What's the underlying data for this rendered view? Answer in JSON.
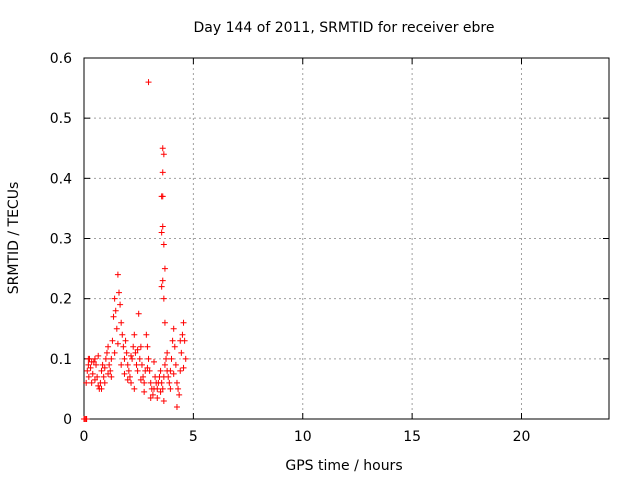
{
  "chart_data": {
    "type": "scatter",
    "title": "Day 144 of 2011, SRMTID for receiver ebre",
    "xlabel": "GPS time / hours",
    "ylabel": "SRMTID / TECUs",
    "xlim": [
      0,
      24
    ],
    "ylim": [
      0,
      0.6
    ],
    "xticks": [
      0,
      5,
      10,
      15,
      20
    ],
    "yticks": [
      0,
      0.1,
      0.2,
      0.3,
      0.4,
      0.5,
      0.6
    ],
    "xtick_labels": [
      "0",
      "5",
      "10",
      "15",
      "20"
    ],
    "ytick_labels": [
      "0",
      "0.1",
      "0.2",
      "0.3",
      "0.4",
      "0.5",
      "0.6"
    ],
    "grid": true,
    "marker": "+",
    "color": "#ff0000",
    "series": [
      {
        "name": "SRMTID",
        "points": [
          [
            0.0,
            0.0
          ],
          [
            0.05,
            0.0
          ],
          [
            0.1,
            0.0
          ],
          [
            0.12,
            0.0
          ],
          [
            0.1,
            0.06
          ],
          [
            0.15,
            0.08
          ],
          [
            0.2,
            0.09
          ],
          [
            0.22,
            0.07
          ],
          [
            0.25,
            0.1
          ],
          [
            0.3,
            0.085
          ],
          [
            0.35,
            0.06
          ],
          [
            0.4,
            0.075
          ],
          [
            0.45,
            0.095
          ],
          [
            0.5,
            0.1
          ],
          [
            0.55,
            0.09
          ],
          [
            0.6,
            0.07
          ],
          [
            0.65,
            0.055
          ],
          [
            0.7,
            0.05
          ],
          [
            0.75,
            0.06
          ],
          [
            0.8,
            0.08
          ],
          [
            0.85,
            0.09
          ],
          [
            0.9,
            0.07
          ],
          [
            0.95,
            0.06
          ],
          [
            1.0,
            0.1
          ],
          [
            1.05,
            0.11
          ],
          [
            1.1,
            0.12
          ],
          [
            1.15,
            0.09
          ],
          [
            1.2,
            0.08
          ],
          [
            1.25,
            0.1
          ],
          [
            1.3,
            0.13
          ],
          [
            1.35,
            0.17
          ],
          [
            1.4,
            0.2
          ],
          [
            1.45,
            0.18
          ],
          [
            1.5,
            0.15
          ],
          [
            1.55,
            0.24
          ],
          [
            1.6,
            0.21
          ],
          [
            1.65,
            0.19
          ],
          [
            1.7,
            0.16
          ],
          [
            1.75,
            0.14
          ],
          [
            1.8,
            0.12
          ],
          [
            1.85,
            0.1
          ],
          [
            1.9,
            0.13
          ],
          [
            1.95,
            0.11
          ],
          [
            2.0,
            0.09
          ],
          [
            2.05,
            0.08
          ],
          [
            2.1,
            0.07
          ],
          [
            2.15,
            0.06
          ],
          [
            2.2,
            0.1
          ],
          [
            2.25,
            0.12
          ],
          [
            2.3,
            0.14
          ],
          [
            2.35,
            0.11
          ],
          [
            2.4,
            0.09
          ],
          [
            2.45,
            0.08
          ],
          [
            2.5,
            0.175
          ],
          [
            2.55,
            0.1
          ],
          [
            2.6,
            0.12
          ],
          [
            2.65,
            0.09
          ],
          [
            2.7,
            0.07
          ],
          [
            2.75,
            0.06
          ],
          [
            2.8,
            0.08
          ],
          [
            2.85,
            0.14
          ],
          [
            2.9,
            0.12
          ],
          [
            2.95,
            0.1
          ],
          [
            3.0,
            0.08
          ],
          [
            3.05,
            0.06
          ],
          [
            3.1,
            0.05
          ],
          [
            3.15,
            0.04
          ],
          [
            3.2,
            0.05
          ],
          [
            3.25,
            0.07
          ],
          [
            3.3,
            0.06
          ],
          [
            3.35,
            0.05
          ],
          [
            3.4,
            0.06
          ],
          [
            3.45,
            0.07
          ],
          [
            3.5,
            0.08
          ],
          [
            3.55,
            0.06
          ],
          [
            3.6,
            0.05
          ],
          [
            3.65,
            0.07
          ],
          [
            3.7,
            0.09
          ],
          [
            3.75,
            0.1
          ],
          [
            3.8,
            0.08
          ],
          [
            3.85,
            0.07
          ],
          [
            3.9,
            0.06
          ],
          [
            3.95,
            0.08
          ],
          [
            4.0,
            0.1
          ],
          [
            4.05,
            0.13
          ],
          [
            4.1,
            0.15
          ],
          [
            4.15,
            0.12
          ],
          [
            4.2,
            0.09
          ],
          [
            4.25,
            0.06
          ],
          [
            4.3,
            0.05
          ],
          [
            4.35,
            0.04
          ],
          [
            4.4,
            0.08
          ],
          [
            4.45,
            0.11
          ],
          [
            4.5,
            0.14
          ],
          [
            4.55,
            0.16
          ],
          [
            4.6,
            0.13
          ],
          [
            4.65,
            0.1
          ],
          [
            0.2,
            0.1
          ],
          [
            0.35,
            0.095
          ],
          [
            0.5,
            0.065
          ],
          [
            0.65,
            0.105
          ],
          [
            0.8,
            0.05
          ],
          [
            0.95,
            0.085
          ],
          [
            1.1,
            0.075
          ],
          [
            1.25,
            0.07
          ],
          [
            1.4,
            0.11
          ],
          [
            1.55,
            0.125
          ],
          [
            1.7,
            0.09
          ],
          [
            1.85,
            0.075
          ],
          [
            2.0,
            0.065
          ],
          [
            2.15,
            0.105
          ],
          [
            2.3,
            0.05
          ],
          [
            2.45,
            0.115
          ],
          [
            2.6,
            0.065
          ],
          [
            2.75,
            0.045
          ],
          [
            2.9,
            0.085
          ],
          [
            3.05,
            0.035
          ],
          [
            3.2,
            0.095
          ],
          [
            3.35,
            0.035
          ],
          [
            3.5,
            0.045
          ],
          [
            3.65,
            0.03
          ],
          [
            3.8,
            0.11
          ],
          [
            3.95,
            0.05
          ],
          [
            4.1,
            0.075
          ],
          [
            4.25,
            0.02
          ],
          [
            4.4,
            0.13
          ],
          [
            4.55,
            0.085
          ],
          [
            2.95,
            0.56
          ],
          [
            3.6,
            0.45
          ],
          [
            3.65,
            0.44
          ],
          [
            3.6,
            0.41
          ],
          [
            3.55,
            0.37
          ],
          [
            3.6,
            0.37
          ],
          [
            3.55,
            0.31
          ],
          [
            3.6,
            0.32
          ],
          [
            3.65,
            0.29
          ],
          [
            3.7,
            0.25
          ],
          [
            3.6,
            0.23
          ],
          [
            3.55,
            0.22
          ],
          [
            3.65,
            0.2
          ],
          [
            3.7,
            0.16
          ]
        ]
      }
    ]
  }
}
